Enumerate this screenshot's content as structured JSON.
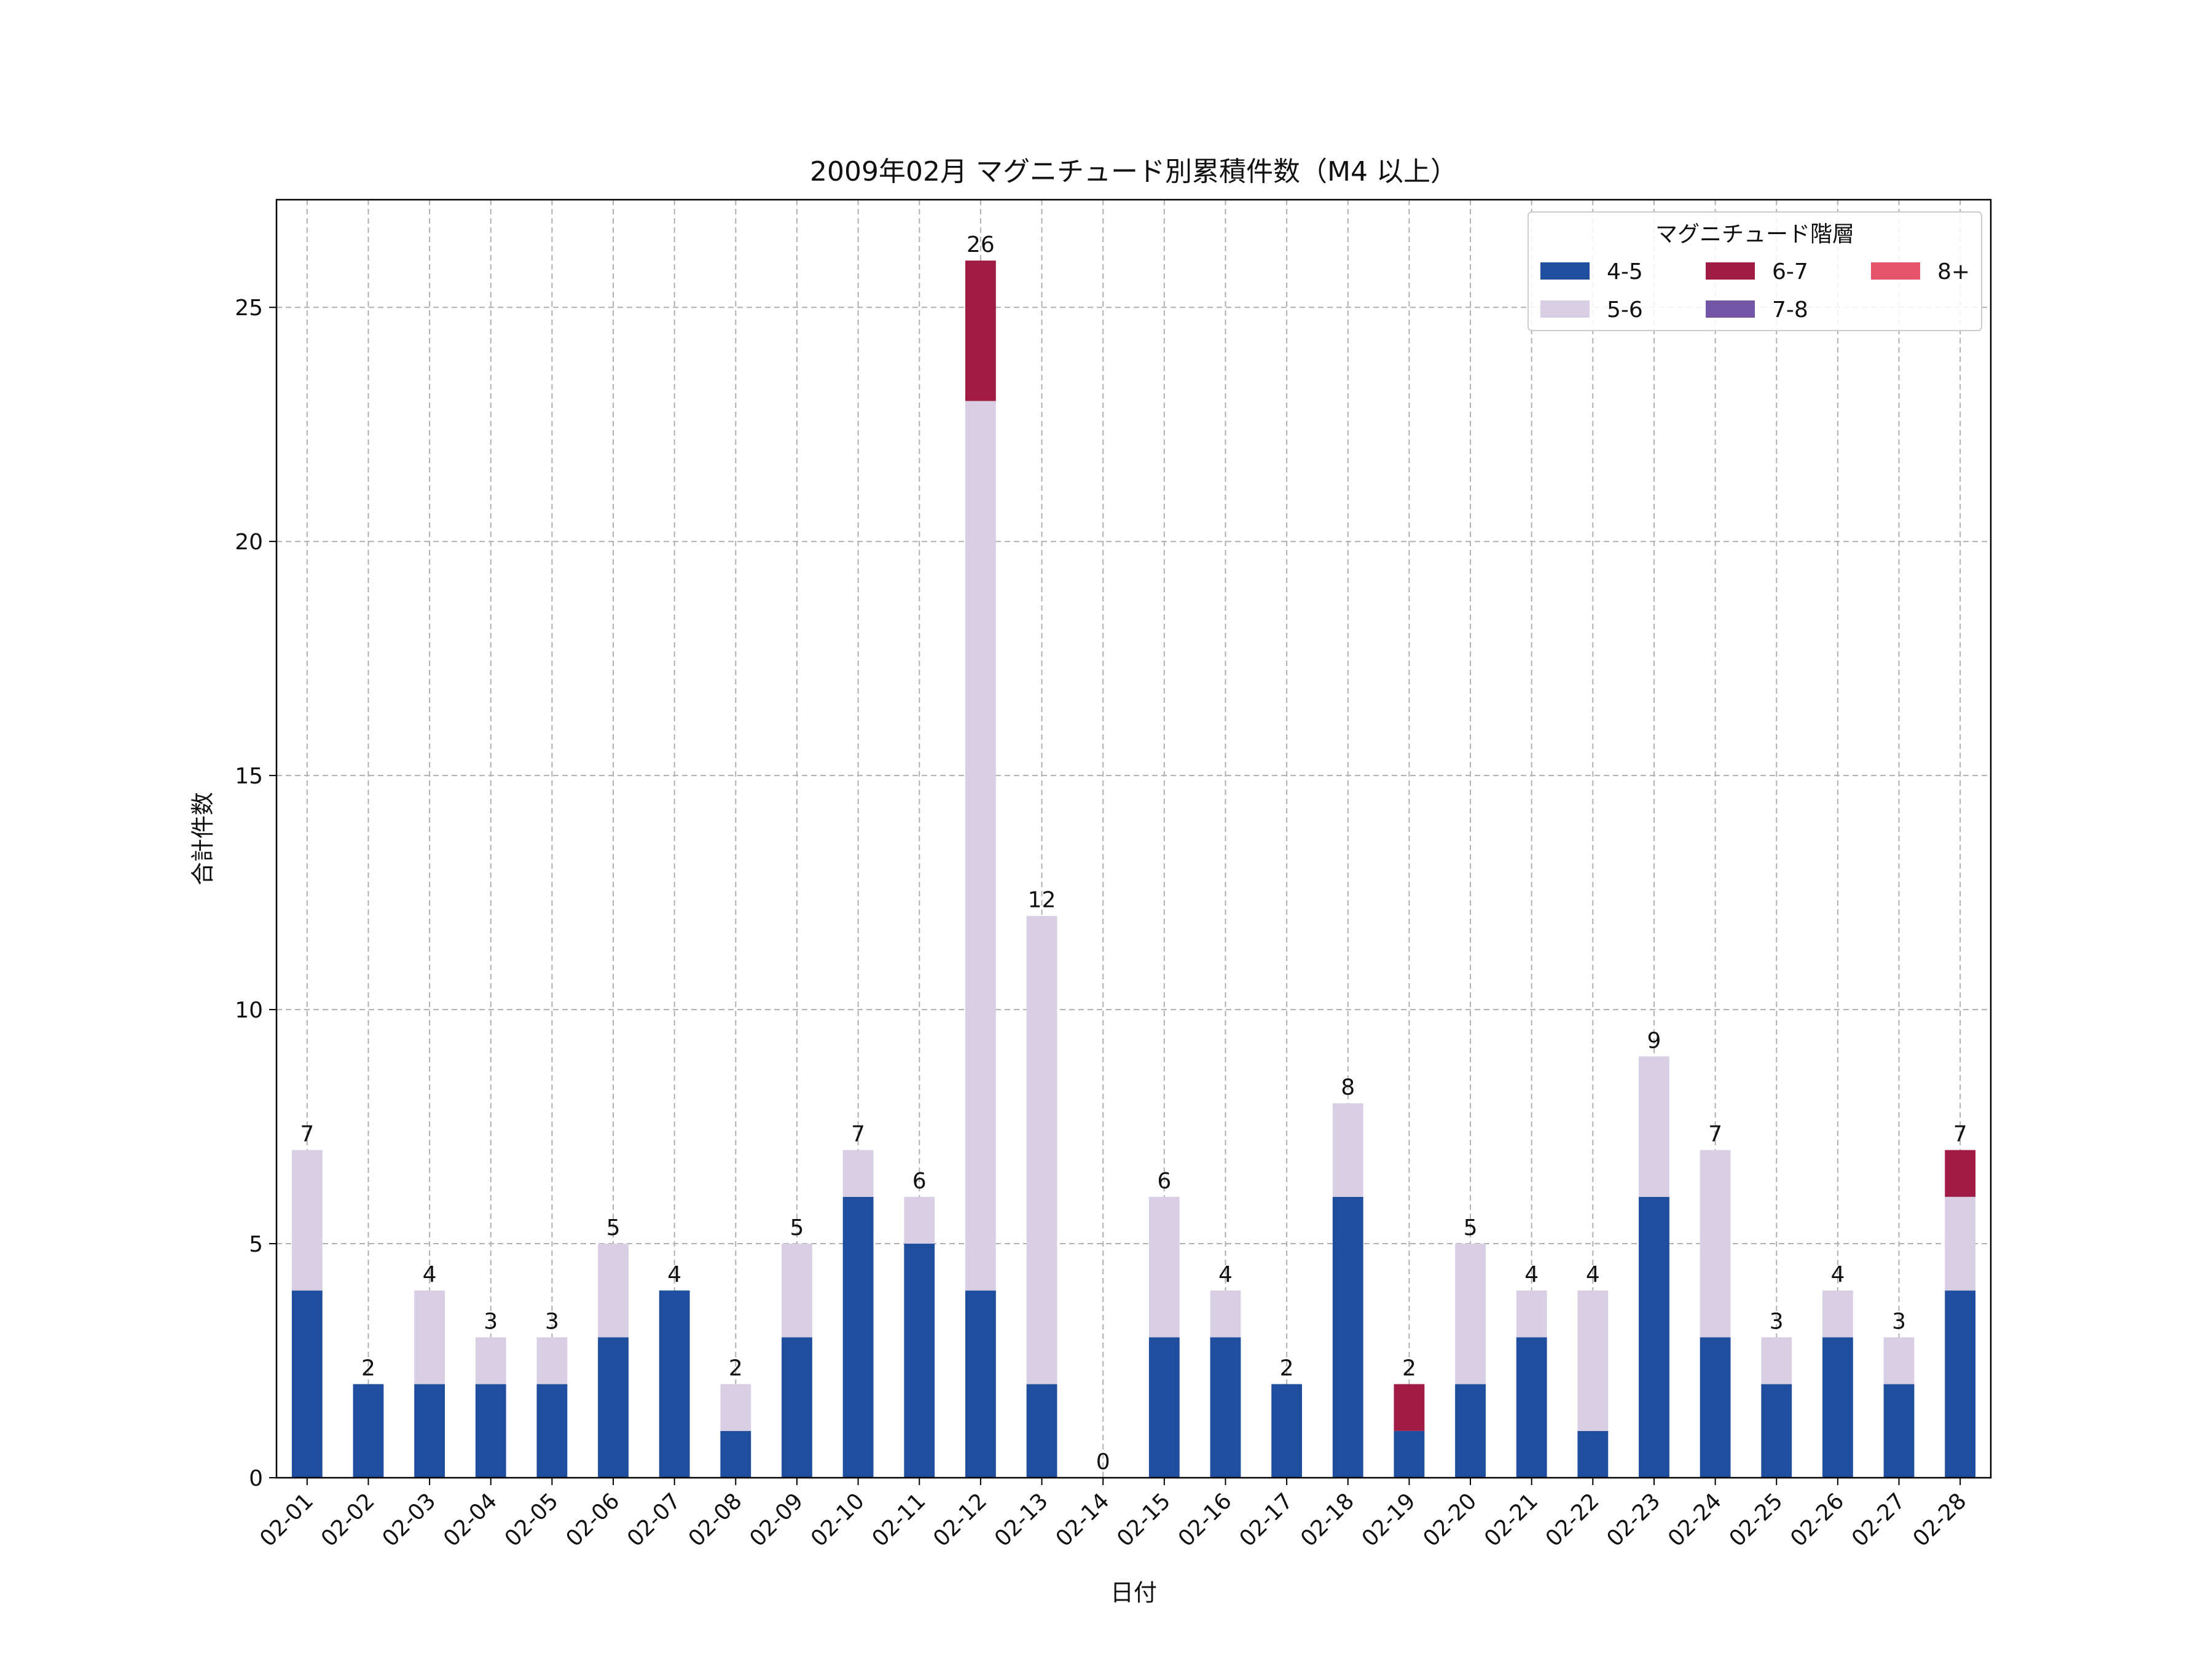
{
  "chart_data": {
    "type": "bar",
    "stacked": true,
    "title": "2009年02月 マグニチュード別累積件数（M4 以上）",
    "xlabel": "日付",
    "ylabel": "合計件数",
    "ylim": [
      0,
      27.3
    ],
    "yticks": [
      0,
      5,
      10,
      15,
      20,
      25
    ],
    "grid": true,
    "legend": {
      "title": "マグニチュード階層",
      "placement": "top-right",
      "columns": 3
    },
    "categories": [
      "02-01",
      "02-02",
      "02-03",
      "02-04",
      "02-05",
      "02-06",
      "02-07",
      "02-08",
      "02-09",
      "02-10",
      "02-11",
      "02-12",
      "02-13",
      "02-14",
      "02-15",
      "02-16",
      "02-17",
      "02-18",
      "02-19",
      "02-20",
      "02-21",
      "02-22",
      "02-23",
      "02-24",
      "02-25",
      "02-26",
      "02-27",
      "02-28"
    ],
    "series": [
      {
        "name": "4-5",
        "color": "#1f4e9e",
        "values": [
          4,
          2,
          2,
          2,
          2,
          3,
          4,
          1,
          3,
          6,
          5,
          4,
          2,
          0,
          3,
          3,
          2,
          6,
          1,
          2,
          3,
          1,
          6,
          3,
          2,
          3,
          2,
          4
        ]
      },
      {
        "name": "5-6",
        "color": "#d9cfe5",
        "values": [
          3,
          0,
          2,
          1,
          1,
          2,
          0,
          1,
          2,
          1,
          1,
          19,
          10,
          0,
          3,
          1,
          0,
          2,
          0,
          3,
          1,
          3,
          3,
          4,
          1,
          1,
          1,
          2
        ]
      },
      {
        "name": "6-7",
        "color": "#a11c45",
        "values": [
          0,
          0,
          0,
          0,
          0,
          0,
          0,
          0,
          0,
          0,
          0,
          3,
          0,
          0,
          0,
          0,
          0,
          0,
          1,
          0,
          0,
          0,
          0,
          0,
          0,
          0,
          0,
          1
        ]
      },
      {
        "name": "7-8",
        "color": "#7355a5",
        "values": [
          0,
          0,
          0,
          0,
          0,
          0,
          0,
          0,
          0,
          0,
          0,
          0,
          0,
          0,
          0,
          0,
          0,
          0,
          0,
          0,
          0,
          0,
          0,
          0,
          0,
          0,
          0,
          0
        ]
      },
      {
        "name": "8+",
        "color": "#e5546a",
        "values": [
          0,
          0,
          0,
          0,
          0,
          0,
          0,
          0,
          0,
          0,
          0,
          0,
          0,
          0,
          0,
          0,
          0,
          0,
          0,
          0,
          0,
          0,
          0,
          0,
          0,
          0,
          0,
          0
        ]
      }
    ],
    "totals": [
      7,
      2,
      4,
      3,
      3,
      5,
      4,
      2,
      5,
      7,
      6,
      26,
      12,
      0,
      6,
      4,
      2,
      8,
      2,
      5,
      4,
      4,
      9,
      7,
      3,
      4,
      3,
      7
    ]
  }
}
